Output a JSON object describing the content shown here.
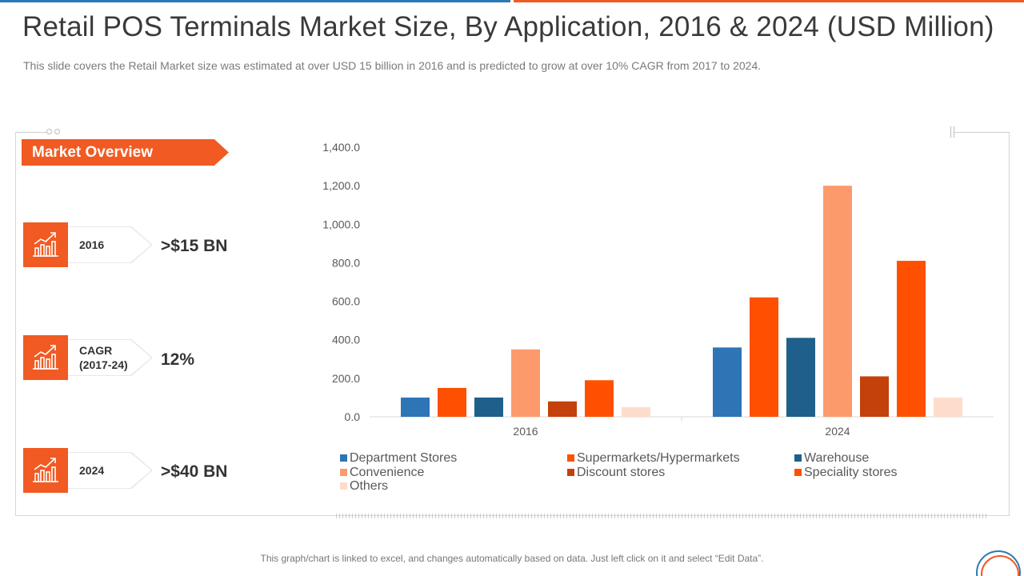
{
  "slide": {
    "title": "Retail POS Terminals Market Size, By Application, 2016 & 2024 (USD Million)",
    "subtitle": "This slide covers the Retail Market size was estimated at over USD 15 billion in 2016 and is predicted to grow at over 10% CAGR from 2017 to 2024.",
    "footer": "This graph/chart is linked to excel, and changes automatically based on data. Just left click on it and select “Edit Data”."
  },
  "overview": {
    "heading": "Market Overview",
    "stats": [
      {
        "label_line1": "2016",
        "label_line2": "",
        "value": ">$15 BN",
        "icon": "growth-chart-icon"
      },
      {
        "label_line1": "CAGR",
        "label_line2": "(2017-24)",
        "value": "12%",
        "icon": "growth-chart-icon"
      },
      {
        "label_line1": "2024",
        "label_line2": "",
        "value": ">$40 BN",
        "icon": "growth-chart-icon"
      }
    ]
  },
  "colors": {
    "accent": "#f15a22",
    "blue": "#2a7ab8"
  },
  "chart_data": {
    "type": "bar",
    "categories": [
      "2016",
      "2024"
    ],
    "ylim": [
      0,
      1400
    ],
    "yticks": [
      0,
      200,
      400,
      600,
      800,
      1000,
      1200,
      1400
    ],
    "ytick_labels": [
      "0.0",
      "200.0",
      "400.0",
      "600.0",
      "800.0",
      "1,000.0",
      "1,200.0",
      "1,400.0"
    ],
    "grid": false,
    "legend_position": "bottom",
    "series": [
      {
        "name": "Department Stores",
        "color": "#2e75b6",
        "values": [
          100,
          360
        ]
      },
      {
        "name": "Supermarkets/Hypermarkets",
        "color": "#fe5000",
        "values": [
          150,
          620
        ]
      },
      {
        "name": "Warehouse",
        "color": "#1f5f8b",
        "values": [
          100,
          410
        ]
      },
      {
        "name": "Convenience",
        "color": "#fc9a6c",
        "values": [
          350,
          1200
        ]
      },
      {
        "name": "Discount stores",
        "color": "#c4410c",
        "values": [
          80,
          210
        ]
      },
      {
        "name": "Speciality stores",
        "color": "#fe5000",
        "values": [
          190,
          810
        ]
      },
      {
        "name": "Others",
        "color": "#fddccc",
        "values": [
          50,
          100
        ]
      }
    ]
  }
}
